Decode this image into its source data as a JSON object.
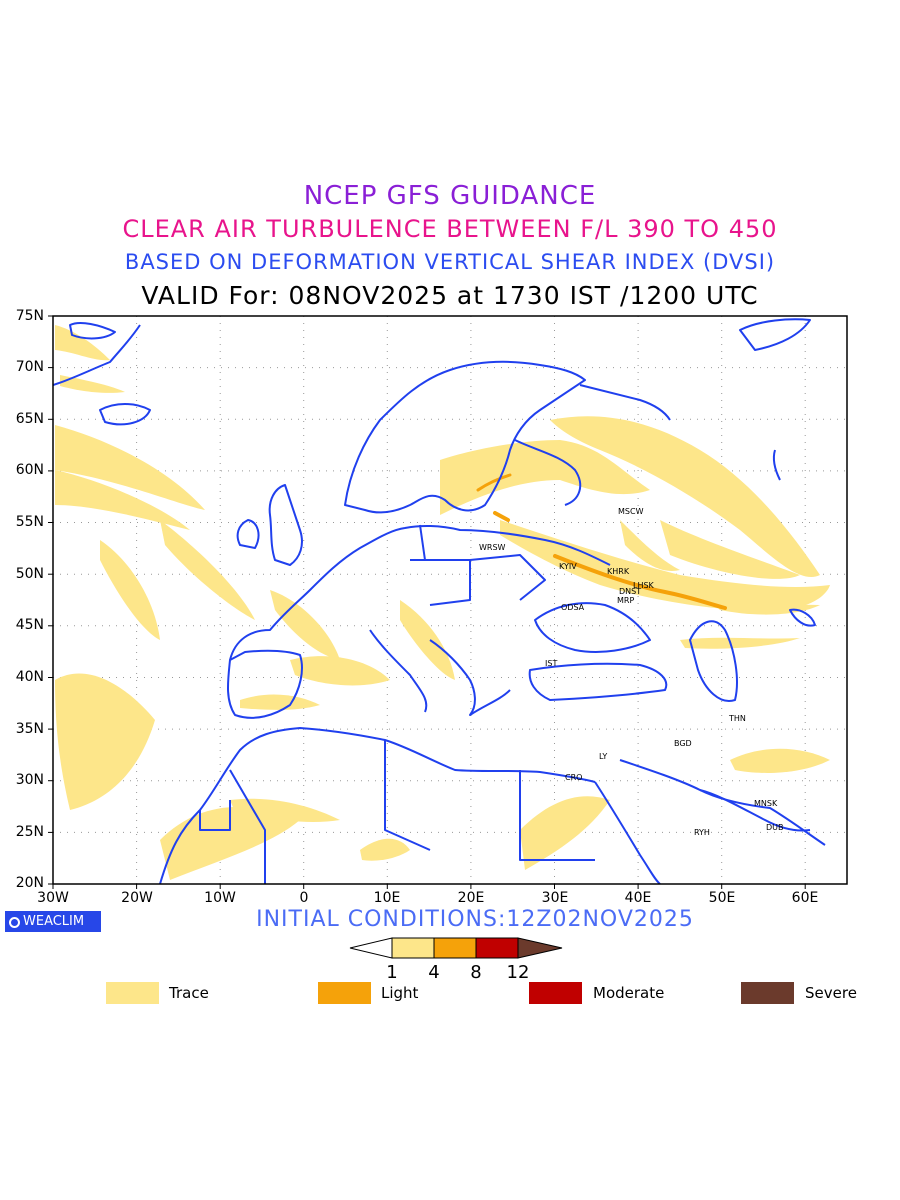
{
  "titles": {
    "line1": "NCEP GFS GUIDANCE",
    "line2": "CLEAR AIR TURBULENCE BETWEEN F/L 390 TO 450",
    "line3": "BASED ON DEFORMATION VERTICAL SHEAR INDEX (DVSI)",
    "line4": "VALID For: 08NOV2025 at 1730 IST /1200 UTC"
  },
  "map": {
    "lat_labels": [
      "75N",
      "70N",
      "65N",
      "60N",
      "55N",
      "50N",
      "45N",
      "40N",
      "35N",
      "30N",
      "25N",
      "20N"
    ],
    "lon_labels": [
      "30W",
      "20W",
      "10W",
      "0",
      "10E",
      "20E",
      "30E",
      "40E",
      "50E",
      "60E"
    ],
    "cities": [
      "MSCW",
      "WRSW",
      "KYIV",
      "KHRK",
      "LHSK",
      "DNST",
      "MRP",
      "ODSA",
      "IST",
      "THN",
      "BGD",
      "LY",
      "CRO",
      "MNSK",
      "RYH",
      "DUB"
    ],
    "colors": {
      "coast": "#2040ee",
      "trace": "#fde68a",
      "light": "#f5a20a",
      "moderate": "#c00000",
      "severe": "#6b3a2c"
    }
  },
  "initial_conditions": "INITIAL  CONDITIONS:12Z02NOV2025",
  "logo_text": "WEACLIM",
  "colorbar": {
    "ticks": [
      "1",
      "4",
      "8",
      "12"
    ]
  },
  "legend": [
    {
      "label": "Trace",
      "color": "#fde68a"
    },
    {
      "label": "Light",
      "color": "#f5a20a"
    },
    {
      "label": "Moderate",
      "color": "#c00000"
    },
    {
      "label": "Severe",
      "color": "#6b3a2c"
    }
  ]
}
